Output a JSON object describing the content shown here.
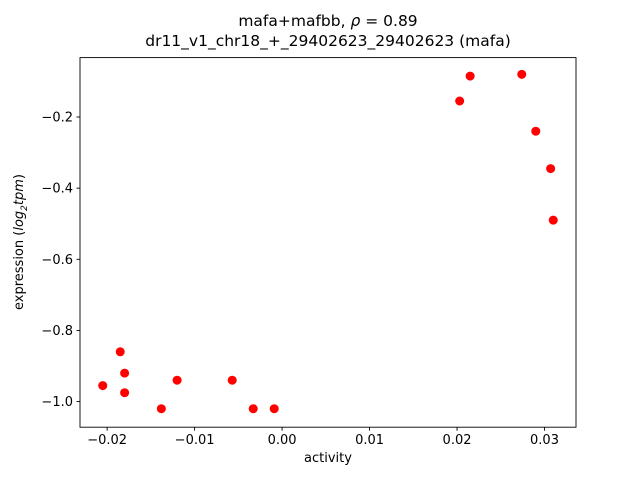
{
  "figure": {
    "title_line1": {
      "pre": "mafa+mafbb, ",
      "rho": "ρ",
      "post": " = 0.89"
    },
    "title_line2": "dr11_v1_chr18_+_29402623_29402623 (mafa)",
    "xlabel": "activity",
    "ylabel": {
      "pre": "expression (",
      "log": "log",
      "sub": "2",
      "tpm": "tpm",
      "post": ")"
    }
  },
  "chart_data": {
    "type": "scatter",
    "title": "mafa+mafbb, ρ = 0.89\ndr11_v1_chr18_+_29402623_29402623 (mafa)",
    "xlabel": "activity",
    "ylabel": "expression (log2 tpm)",
    "legend": "none",
    "grid": false,
    "marker_color": "#ff0000",
    "marker_radius": 4.5,
    "xlim": [
      -0.0231,
      0.0336
    ],
    "ylim": [
      -1.072,
      -0.033
    ],
    "x_ticks": {
      "values": [
        -0.02,
        -0.01,
        0.0,
        0.01,
        0.02,
        0.03
      ],
      "labels": [
        "−0.02",
        "−0.01",
        "0.00",
        "0.01",
        "0.02",
        "0.03"
      ]
    },
    "y_ticks": {
      "values": [
        -0.2,
        -0.4,
        -0.6,
        -0.8,
        -1.0
      ],
      "labels": [
        "−0.2",
        "−0.4",
        "−0.6",
        "−0.8",
        "−1.0"
      ]
    },
    "points": [
      [
        -0.0205,
        -0.955
      ],
      [
        -0.0185,
        -0.86
      ],
      [
        -0.018,
        -0.92
      ],
      [
        -0.018,
        -0.975
      ],
      [
        -0.0138,
        -1.02
      ],
      [
        -0.012,
        -0.94
      ],
      [
        -0.0057,
        -0.94
      ],
      [
        -0.0033,
        -1.02
      ],
      [
        -0.0009,
        -1.02
      ],
      [
        0.0203,
        -0.155
      ],
      [
        0.0215,
        -0.085
      ],
      [
        0.0274,
        -0.08
      ],
      [
        0.029,
        -0.24
      ],
      [
        0.0307,
        -0.345
      ],
      [
        0.031,
        -0.49
      ]
    ]
  }
}
